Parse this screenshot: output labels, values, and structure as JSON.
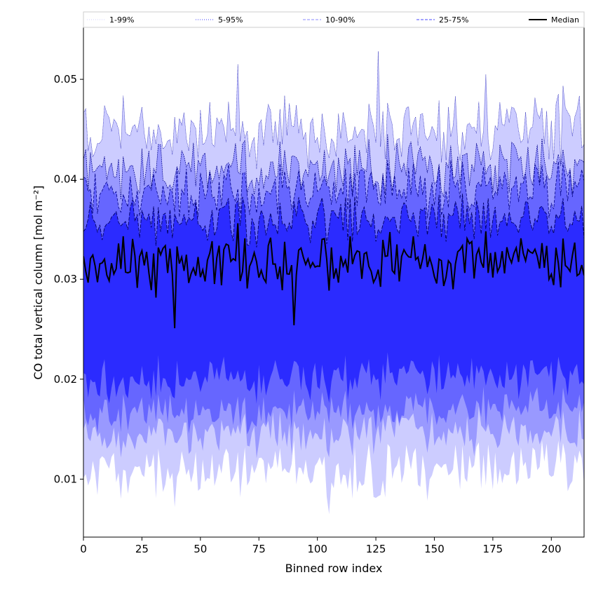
{
  "chart_data": {
    "type": "area",
    "title": "",
    "xlabel": "Binned row index",
    "ylabel": "CO total vertical column [mol m⁻²]",
    "xlim": [
      0,
      214
    ],
    "ylim": [
      0.0042,
      0.0552
    ],
    "x_ticks": [
      0,
      25,
      50,
      75,
      100,
      125,
      150,
      175,
      200
    ],
    "y_ticks": [
      0.01,
      0.02,
      0.03,
      0.04,
      0.05
    ],
    "y_tick_labels": [
      "0.01",
      "0.02",
      "0.03",
      "0.04",
      "0.05"
    ],
    "grid": false,
    "legend_position": "top, above plot",
    "legend": [
      {
        "label": "1-99%",
        "style": "dotted",
        "color": "#d0d0ff"
      },
      {
        "label": "5-95%",
        "style": "dotted",
        "color": "#4040ff"
      },
      {
        "label": "10-90%",
        "style": "dashed",
        "color": "#8888ff"
      },
      {
        "label": "25-75%",
        "style": "dashed",
        "color": "#4a4aff"
      },
      {
        "label": "Median",
        "style": "solid",
        "color": "#000000"
      }
    ],
    "band_colors": [
      "#ccccff",
      "#9999ff",
      "#6666ff",
      "#2b2bff"
    ],
    "median_color": "#000000",
    "n_points": 215,
    "percentile_summary": {
      "p1": 0.0105,
      "p5": 0.0142,
      "p10": 0.0165,
      "p25": 0.0197,
      "median": 0.0312,
      "p75": 0.0355,
      "p90": 0.0383,
      "p95": 0.0405,
      "p99": 0.0445
    },
    "notable_points": [
      {
        "x": 39,
        "median": 0.0251,
        "p1": 0.0072
      },
      {
        "x": 66,
        "median": 0.0356,
        "p99": 0.0515
      },
      {
        "x": 90,
        "median": 0.0254
      },
      {
        "x": 105,
        "p1": 0.0065
      },
      {
        "x": 126,
        "p99": 0.0528
      },
      {
        "x": 172,
        "median": 0.0348,
        "p99": 0.0505
      }
    ]
  }
}
